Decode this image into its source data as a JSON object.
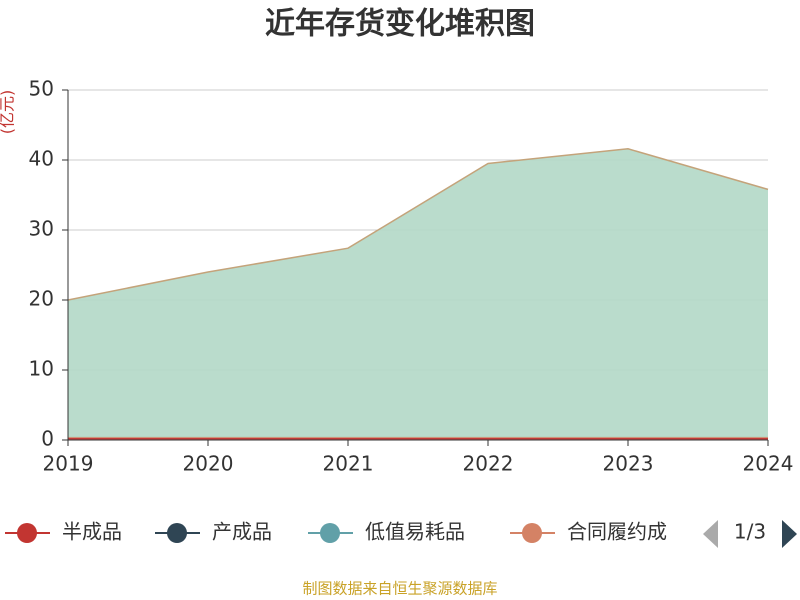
{
  "chart_data": {
    "type": "stacked_area",
    "title": "近年存货变化堆积图",
    "y_label": "(亿元)",
    "categories": [
      "2019",
      "2020",
      "2021",
      "2022",
      "2023",
      "2024"
    ],
    "series": [
      {
        "name": "半成品",
        "color": "#c23531",
        "values": [
          0.3,
          0.3,
          0.3,
          0.3,
          0.3,
          0.3
        ]
      },
      {
        "name": "产成品",
        "color": "#2f4554",
        "values": [
          0.1,
          0.1,
          0.1,
          0.1,
          0.1,
          0.1
        ]
      },
      {
        "name": "低值易耗品",
        "color": "#61a0a8",
        "values": [
          0,
          0,
          0,
          0,
          0,
          0
        ]
      },
      {
        "name": "合同履约成",
        "color": "#d48265",
        "values": [
          0,
          0,
          0,
          0,
          0,
          0
        ]
      },
      {
        "color": "#c4a37a",
        "area_color": "#b3d8c6",
        "values": [
          19.6,
          23.6,
          27.0,
          39.1,
          41.2,
          35.4
        ]
      }
    ],
    "ylim": [
      0,
      50
    ],
    "yticks": [
      0,
      10,
      20,
      30,
      40,
      50
    ],
    "grid": true,
    "legend_page": "1/3",
    "source": "制图数据来自恒生聚源数据库"
  }
}
